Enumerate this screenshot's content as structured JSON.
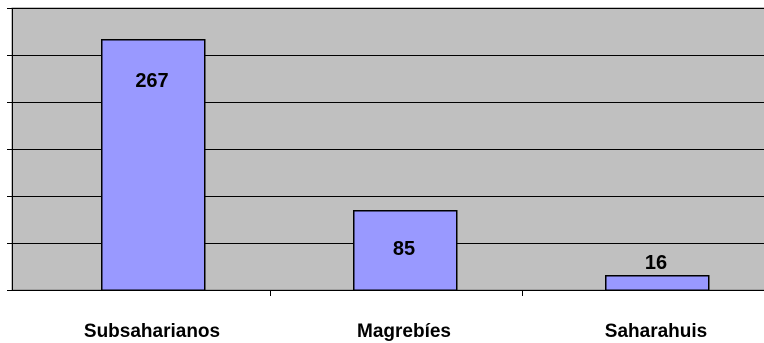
{
  "chart_data": {
    "type": "bar",
    "categories": [
      "Subsaharianos",
      "Magrebíes",
      "Saharahuis"
    ],
    "values": [
      267,
      85,
      16
    ],
    "data_labels": [
      "267",
      "85",
      "16"
    ],
    "title": "",
    "xlabel": "",
    "ylabel": "",
    "ylim": [
      0,
      300
    ],
    "y_gridline_step": 50,
    "grid": true,
    "legend": "none",
    "colors": {
      "bar_fill": "#9999ff",
      "plot_background": "#c0c0c0",
      "gridline": "#000000"
    }
  }
}
